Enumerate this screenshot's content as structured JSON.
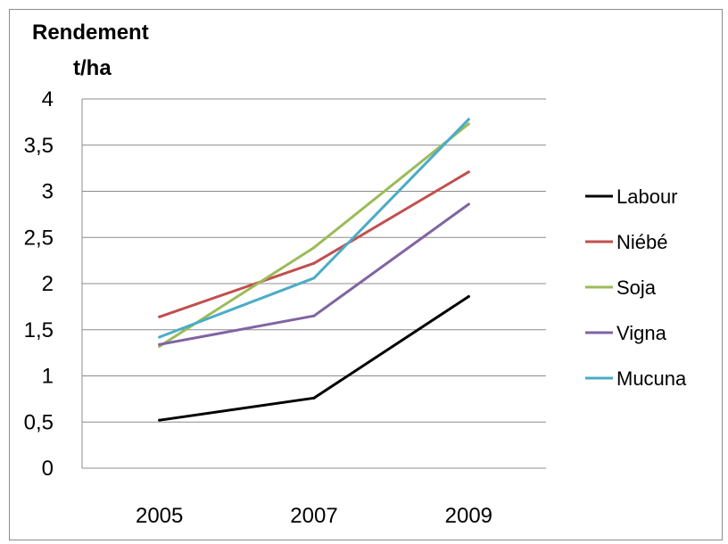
{
  "chart_data": {
    "type": "line",
    "title": "",
    "ylabel_line1": "Rendement",
    "ylabel_line2": "t/ha",
    "xlabel": "",
    "categories": [
      "2005",
      "2007",
      "2009"
    ],
    "ylim": [
      0,
      4
    ],
    "yticks": [
      0,
      0.5,
      1,
      1.5,
      2,
      2.5,
      3,
      3.5,
      4
    ],
    "ytick_labels": [
      "0",
      "0,5",
      "1",
      "1,5",
      "2",
      "2,5",
      "3",
      "3,5",
      "4"
    ],
    "grid": true,
    "legend_position": "right",
    "series": [
      {
        "name": "Labour",
        "color": "#000000",
        "values": [
          0.52,
          0.76,
          1.86
        ]
      },
      {
        "name": "Niébé",
        "color": "#c0504d",
        "values": [
          1.64,
          2.22,
          3.21
        ]
      },
      {
        "name": "Soja",
        "color": "#9bbb59",
        "values": [
          1.32,
          2.39,
          3.73
        ]
      },
      {
        "name": "Vigna",
        "color": "#8064a2",
        "values": [
          1.34,
          1.65,
          2.86
        ]
      },
      {
        "name": "Mucuna",
        "color": "#4bacc6",
        "values": [
          1.42,
          2.06,
          3.78
        ]
      }
    ]
  }
}
